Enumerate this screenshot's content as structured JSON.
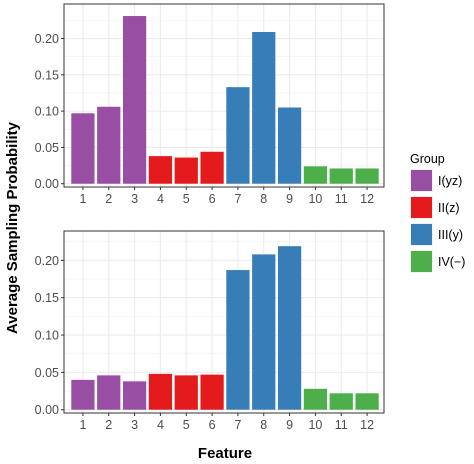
{
  "chart_data": {
    "type": "bar",
    "xlabel": "Feature",
    "ylabel": "Average Sampling Probability",
    "legend": {
      "title": "Group",
      "placement": "right",
      "entries": [
        {
          "key": "I",
          "label": "I(yz)",
          "color": "#984EA3"
        },
        {
          "key": "II",
          "label": "II(z)",
          "color": "#E41A1C"
        },
        {
          "key": "III",
          "label": "III(y)",
          "color": "#377EB8"
        },
        {
          "key": "IV",
          "label": "IV(−)",
          "color": "#4DAF4A"
        }
      ]
    },
    "grid": true,
    "panels": [
      {
        "categories": [
          "1",
          "2",
          "3",
          "4",
          "5",
          "6",
          "7",
          "8",
          "9",
          "10",
          "11",
          "12"
        ],
        "groups": [
          "I",
          "I",
          "I",
          "II",
          "II",
          "II",
          "III",
          "III",
          "III",
          "IV",
          "IV",
          "IV"
        ],
        "values": [
          0.097,
          0.106,
          0.231,
          0.038,
          0.036,
          0.044,
          0.133,
          0.209,
          0.105,
          0.024,
          0.021,
          0.021
        ],
        "ylim": [
          0,
          0.24
        ],
        "yticks": [
          0.0,
          0.05,
          0.1,
          0.15,
          0.2
        ],
        "ytick_labels": [
          "0.00",
          "0.05",
          "0.10",
          "0.15",
          "0.20"
        ]
      },
      {
        "categories": [
          "1",
          "2",
          "3",
          "4",
          "5",
          "6",
          "7",
          "8",
          "9",
          "10",
          "11",
          "12"
        ],
        "groups": [
          "I",
          "I",
          "I",
          "II",
          "II",
          "II",
          "III",
          "III",
          "III",
          "IV",
          "IV",
          "IV"
        ],
        "values": [
          0.04,
          0.046,
          0.038,
          0.048,
          0.046,
          0.047,
          0.187,
          0.208,
          0.219,
          0.028,
          0.022,
          0.022
        ],
        "ylim": [
          0,
          0.232
        ],
        "yticks": [
          0.0,
          0.05,
          0.1,
          0.15,
          0.2
        ],
        "ytick_labels": [
          "0.00",
          "0.05",
          "0.10",
          "0.15",
          "0.20"
        ]
      }
    ]
  }
}
